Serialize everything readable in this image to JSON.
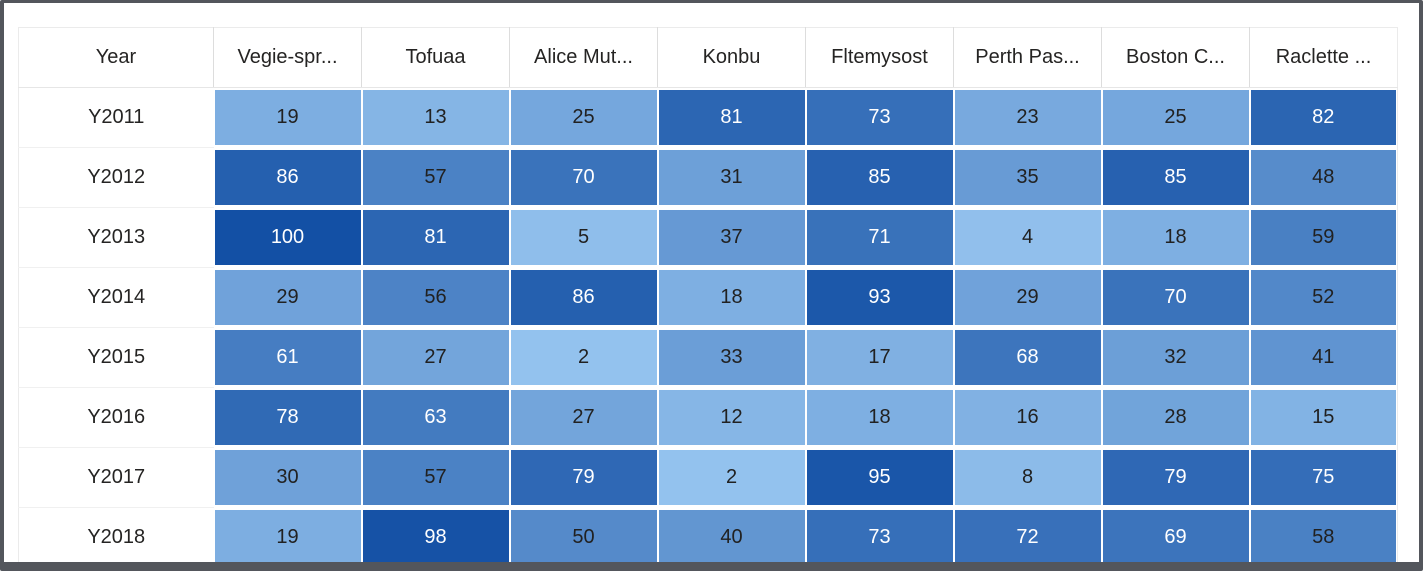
{
  "frame": {
    "border_color": "#53565C",
    "background": "#FFFFFF"
  },
  "chart_data": {
    "type": "heatmap",
    "row_header_label": "Year",
    "columns": [
      "Vegie-spr...",
      "Tofuaa",
      "Alice Mut...",
      "Konbu",
      "Fltemysost",
      "Perth Pas...",
      "Boston C...",
      "Raclette ..."
    ],
    "rows": [
      "Y2011",
      "Y2012",
      "Y2013",
      "Y2014",
      "Y2015",
      "Y2016",
      "Y2017",
      "Y2018"
    ],
    "values": [
      [
        19,
        13,
        25,
        81,
        73,
        23,
        25,
        82
      ],
      [
        86,
        57,
        70,
        31,
        85,
        35,
        85,
        48
      ],
      [
        100,
        81,
        5,
        37,
        71,
        4,
        18,
        59
      ],
      [
        29,
        56,
        86,
        18,
        93,
        29,
        70,
        52
      ],
      [
        61,
        27,
        2,
        33,
        17,
        68,
        32,
        41
      ],
      [
        78,
        63,
        27,
        12,
        18,
        16,
        28,
        15
      ],
      [
        30,
        57,
        79,
        2,
        95,
        8,
        79,
        75
      ],
      [
        19,
        98,
        50,
        40,
        73,
        72,
        69,
        58
      ]
    ],
    "color_scale": {
      "min_value": 0,
      "max_value": 100,
      "light": "#96C4EF",
      "dark": "#1350A5",
      "white_text_above": 60,
      "dark_text_color": "#212121",
      "light_text_color": "#FFFFFF"
    },
    "cutoff_next_row_colors": [
      "#2261AF",
      "#1C59AB",
      "#4D83C6",
      "#6FA3DC",
      "#2D68B4",
      "#85B6E8",
      "#4D83C6",
      "#3A74BB"
    ],
    "legend_position": "none",
    "grid": true
  }
}
